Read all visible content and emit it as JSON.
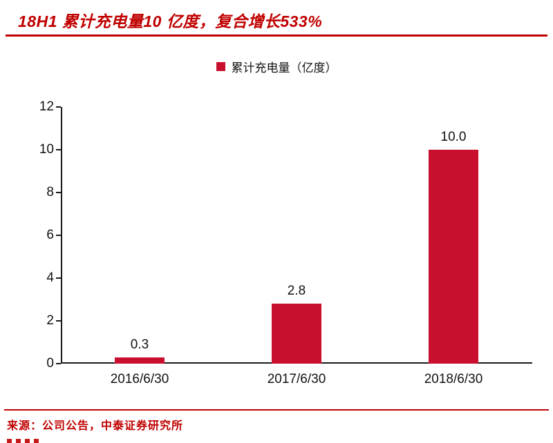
{
  "page": {
    "title": "18H1 累计充电量10 亿度，复合增长533%",
    "source": "来源：公司公告，中泰证券研究所"
  },
  "colors": {
    "accent": "#C00000",
    "bar": "#C8102E",
    "axis": "#1A1A1A",
    "text": "#111111"
  },
  "chart_data": {
    "type": "bar",
    "title": "18H1 累计充电量10 亿度，复合增长533%",
    "legend": [
      "累计充电量（亿度）"
    ],
    "legend_position": "top",
    "categories": [
      "2016/6/30",
      "2017/6/30",
      "2018/6/30"
    ],
    "values": [
      0.3,
      2.8,
      10.0
    ],
    "data_labels": [
      "0.3",
      "2.8",
      "10.0"
    ],
    "xlabel": "",
    "ylabel": "",
    "ylim": [
      0,
      12
    ],
    "yticks": [
      0,
      2,
      4,
      6,
      8,
      10,
      12
    ],
    "grid": false
  }
}
